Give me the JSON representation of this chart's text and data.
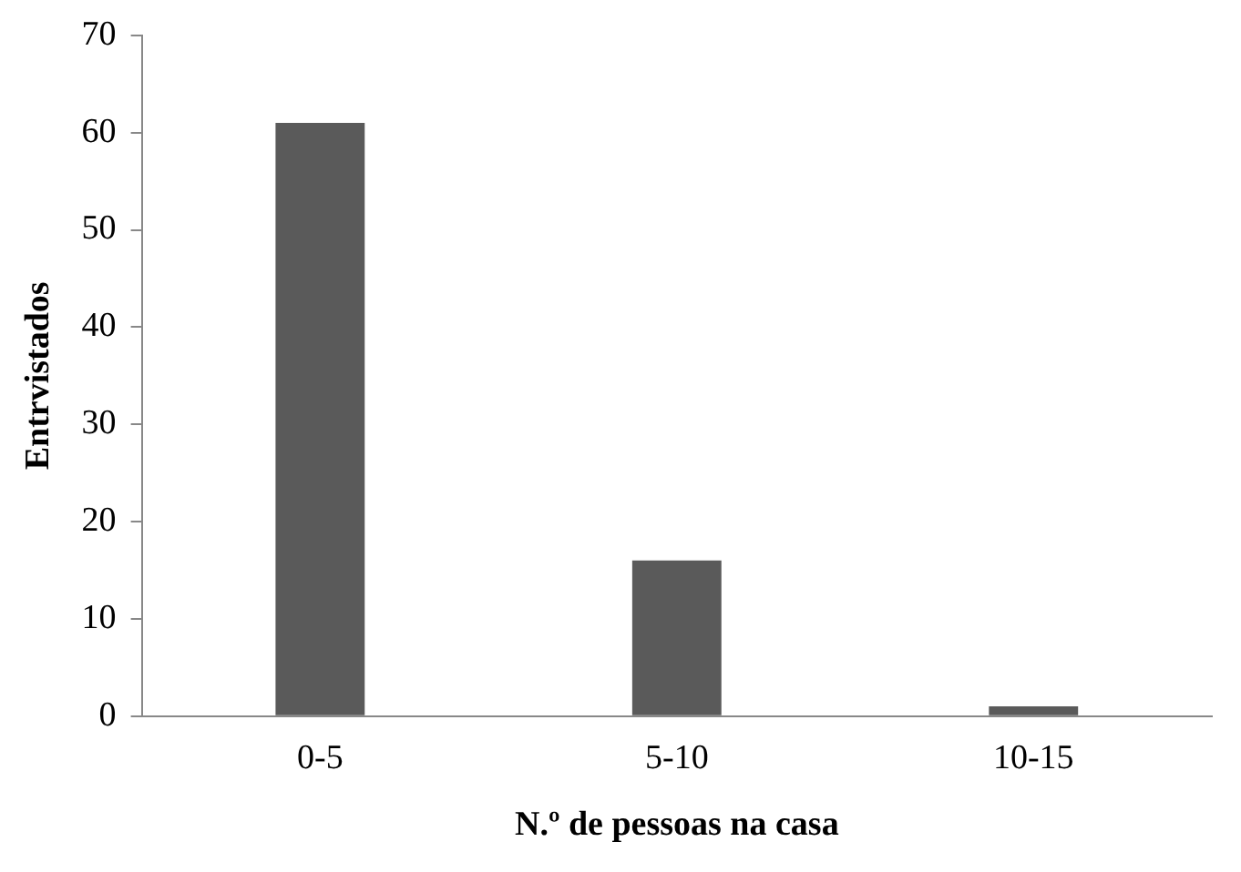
{
  "chart_data": {
    "type": "bar",
    "xlabel": "N.º de pessoas na casa",
    "ylabel": "Entrvistados",
    "categories": [
      "0-5",
      "5-10",
      "10-15"
    ],
    "values": [
      61,
      16,
      1
    ],
    "color": "#5a5a5a",
    "ylim": [
      0,
      70
    ],
    "yticks": [
      0,
      10,
      20,
      30,
      40,
      50,
      60,
      70
    ],
    "grid": false,
    "legend": false
  }
}
